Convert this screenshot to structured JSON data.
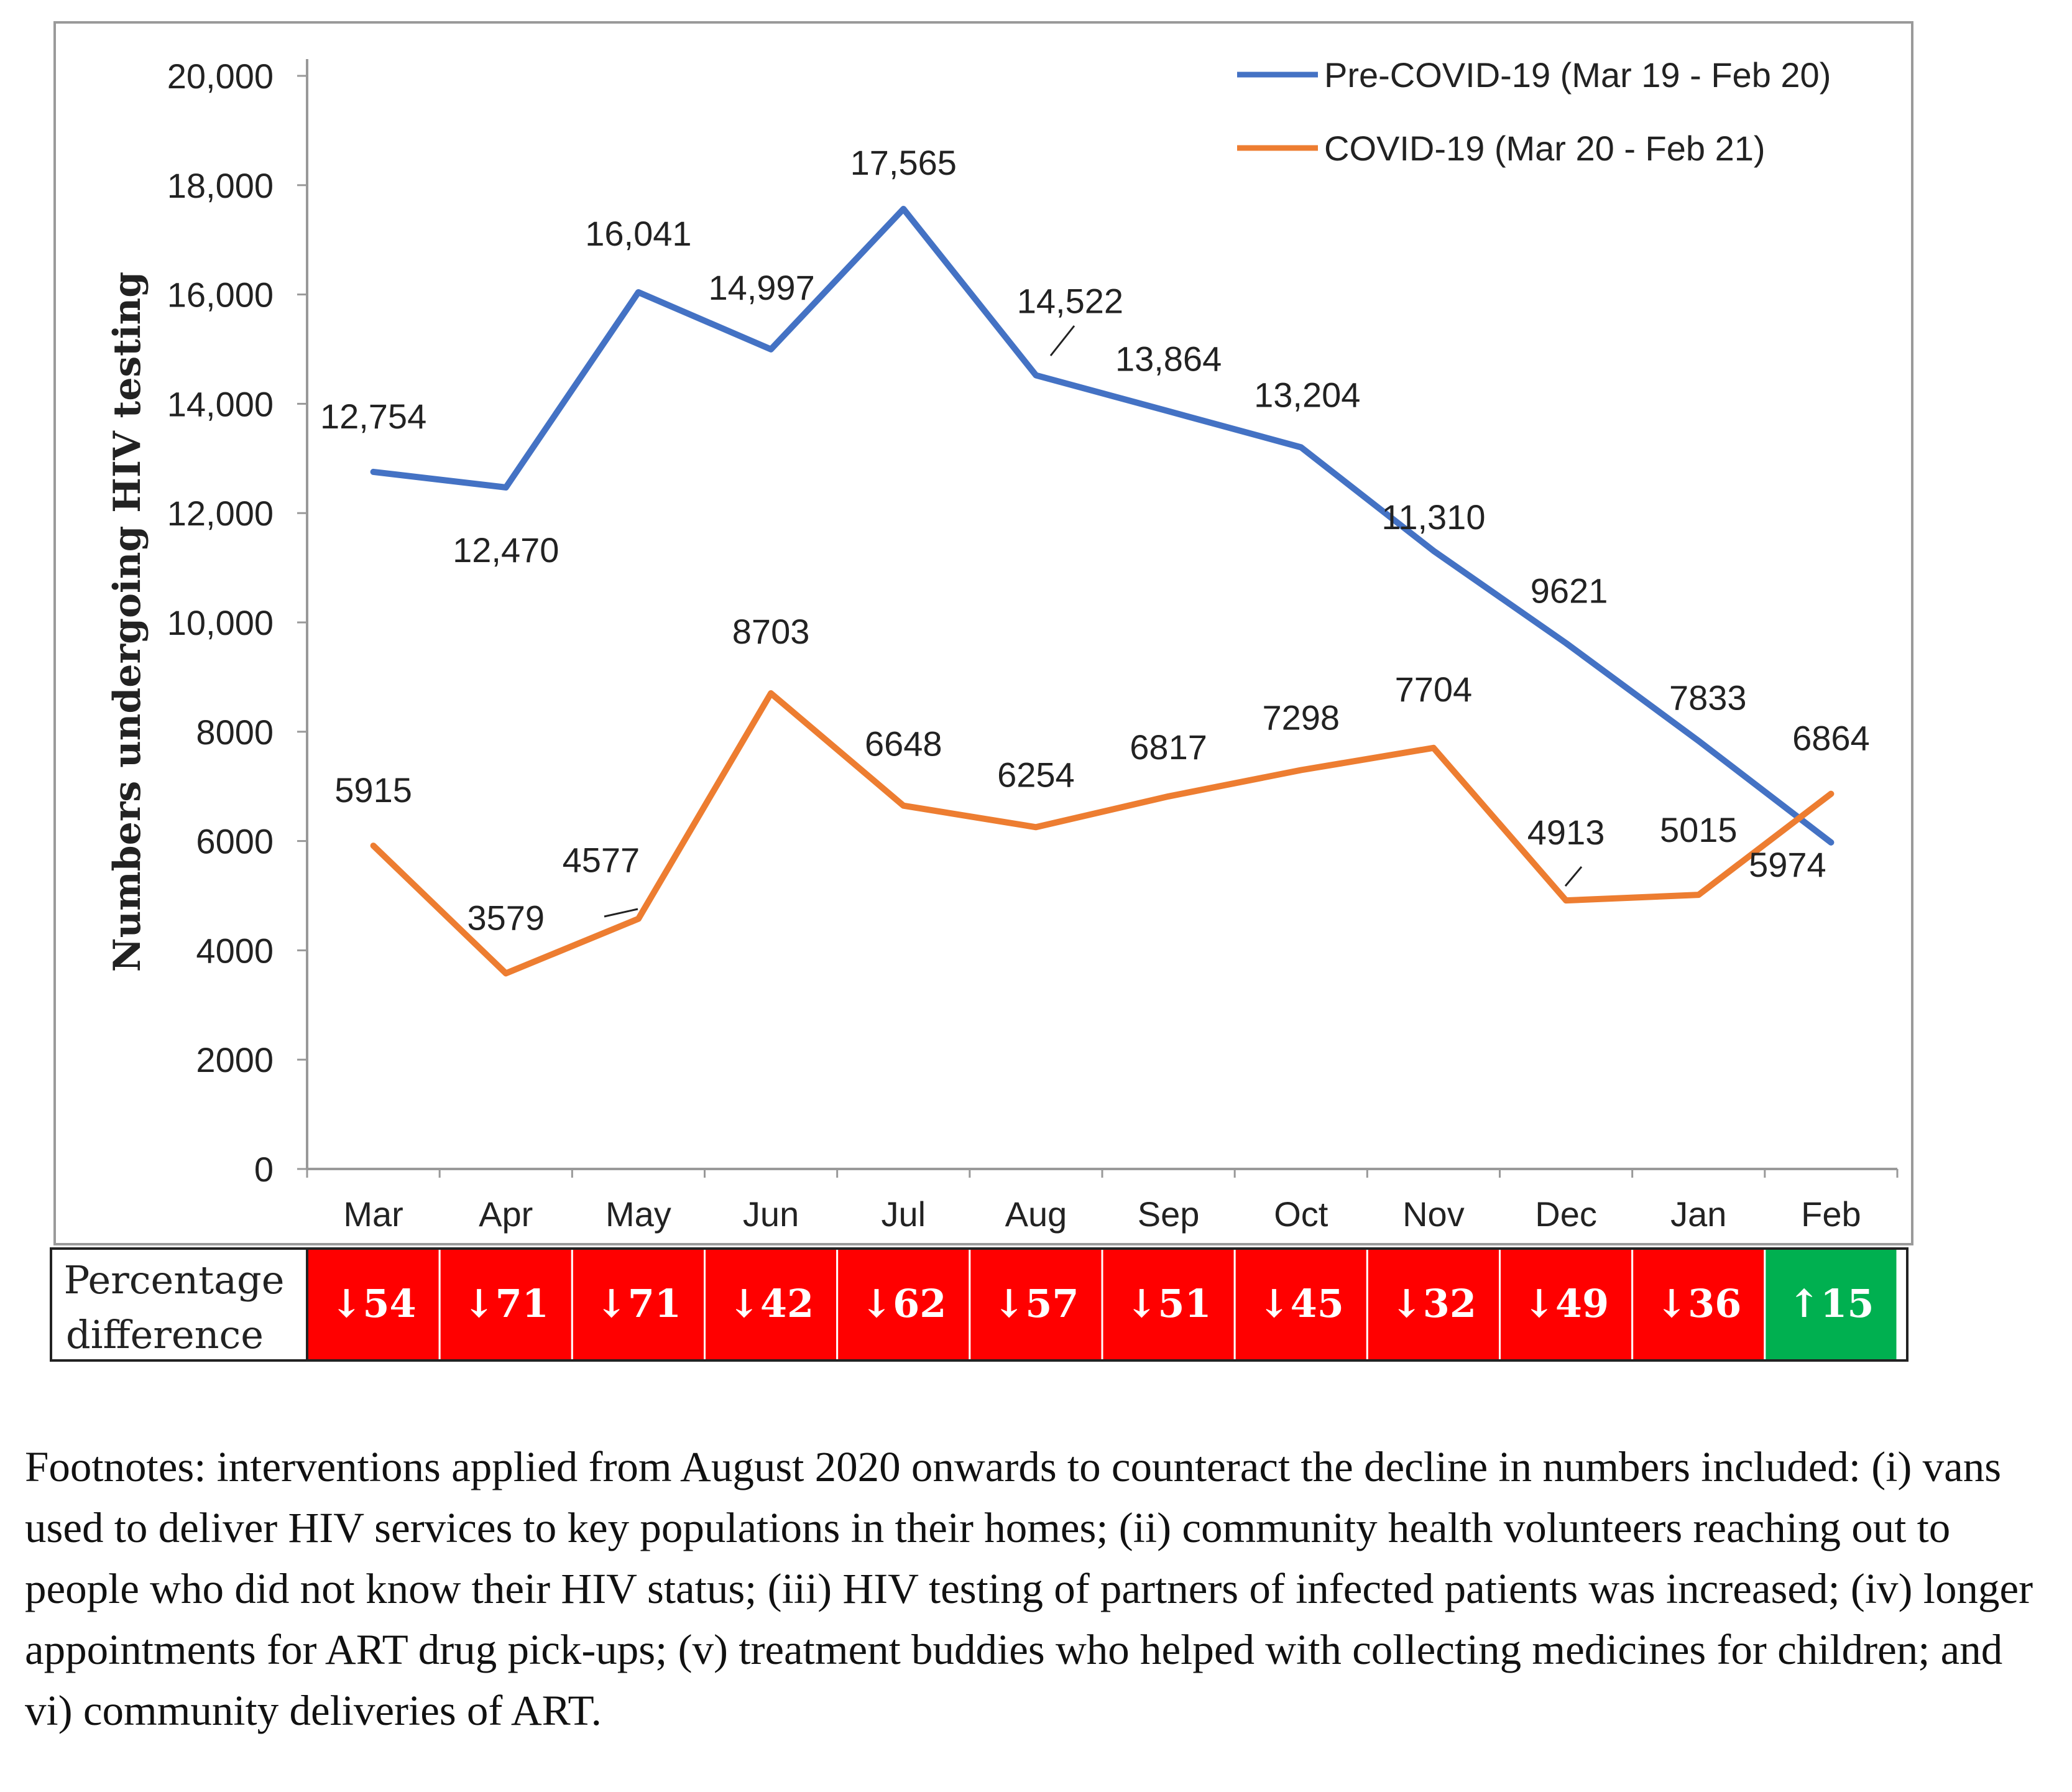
{
  "chart_data": {
    "type": "line",
    "title": "",
    "xlabel": "",
    "ylabel": "Numbers undergoing HIV testing",
    "ylim": [
      0,
      20000
    ],
    "yticks": [
      0,
      2000,
      4000,
      6000,
      8000,
      10000,
      12000,
      14000,
      16000,
      18000,
      20000
    ],
    "ytick_labels": [
      "0",
      "2000",
      "4000",
      "6000",
      "8000",
      "10,000",
      "12,000",
      "14,000",
      "16,000",
      "18,000",
      "20,000"
    ],
    "categories": [
      "Mar",
      "Apr",
      "May",
      "Jun",
      "Jul",
      "Aug",
      "Sep",
      "Oct",
      "Nov",
      "Dec",
      "Jan",
      "Feb"
    ],
    "legend_position": "top-right",
    "series": [
      {
        "name": "Pre-COVID-19 (Mar 19 - Feb 20)",
        "color": "#4472C4",
        "values": [
          12754,
          12470,
          16041,
          14997,
          17565,
          14522,
          13864,
          13204,
          11310,
          9621,
          7833,
          5974
        ],
        "labels": [
          "12,754",
          "12,470",
          "16,041",
          "14,997",
          "17,565",
          "14,522",
          "13,864",
          "13,204",
          "11,310",
          "9621",
          "7833",
          "5974"
        ]
      },
      {
        "name": "COVID-19 (Mar 20 - Feb 21)",
        "color": "#ED7D31",
        "values": [
          5915,
          3579,
          4577,
          8703,
          6648,
          6254,
          6817,
          7298,
          7704,
          4913,
          5015,
          6864
        ],
        "labels": [
          "5915",
          "3579",
          "4577",
          "8703",
          "6648",
          "6254",
          "6817",
          "7298",
          "7704",
          "4913",
          "5015",
          "6864"
        ]
      }
    ],
    "percentage_difference": {
      "label_line1": "Percentage",
      "label_line2": "difference",
      "values": [
        -54,
        -71,
        -71,
        -42,
        -62,
        -57,
        -51,
        -45,
        -32,
        -49,
        -36,
        15
      ],
      "labels": [
        "↓54",
        "↓71",
        "↓71",
        "↓42",
        "↓62",
        "↓57",
        "↓51",
        "↓45",
        "↓32",
        "↓49",
        "↓36",
        "↑15"
      ],
      "decrease_color": "#FF0000",
      "increase_color": "#00B050"
    }
  },
  "footnote": "Footnotes: interventions applied from August 2020 onwards to counteract the decline in numbers included: (i) vans used to deliver HIV services to key populations in their homes; (ii) community health volunteers reaching out to people who did not know their HIV status; (iii) HIV testing of partners of infected patients was increased; (iv) longer appointments for ART drug pick-ups; (v) treatment buddies who helped with collecting medicines for children; and vi) community deliveries of ART."
}
